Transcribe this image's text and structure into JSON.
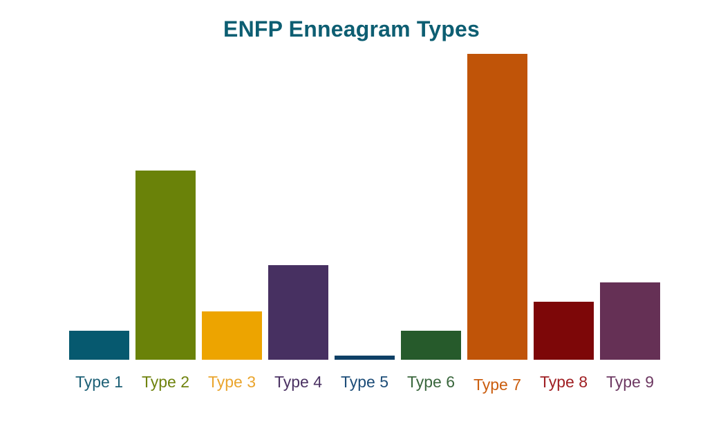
{
  "page": {
    "background_color": "#ffffff"
  },
  "chart_data": {
    "type": "bar",
    "title": "ENFP Enneagram Types",
    "title_color": "#0d5e72",
    "categories": [
      "Type 1",
      "Type 2",
      "Type 3",
      "Type 4",
      "Type 5",
      "Type 6",
      "Type 7",
      "Type 8",
      "Type 9"
    ],
    "values": [
      3.5,
      22.6,
      5.8,
      11.3,
      0.5,
      3.5,
      36.5,
      6.9,
      9.2
    ],
    "bar_colors": [
      "#06596f",
      "#6a8209",
      "#eda400",
      "#473061",
      "#0e4066",
      "#265a2b",
      "#c05408",
      "#7d0708",
      "#653055"
    ],
    "label_colors": [
      "#1d6076",
      "#6f830e",
      "#eaa52e",
      "#4b3263",
      "#1d4d78",
      "#3a673d",
      "#cb5e0f",
      "#a02024",
      "#6e3a63"
    ],
    "xlabel": "",
    "ylabel": "",
    "ylim": [
      0,
      36.5
    ],
    "y_axis_visible": false,
    "x_axis_line_visible": false,
    "gridlines": false,
    "legend": false,
    "value_labels_visible": false
  }
}
